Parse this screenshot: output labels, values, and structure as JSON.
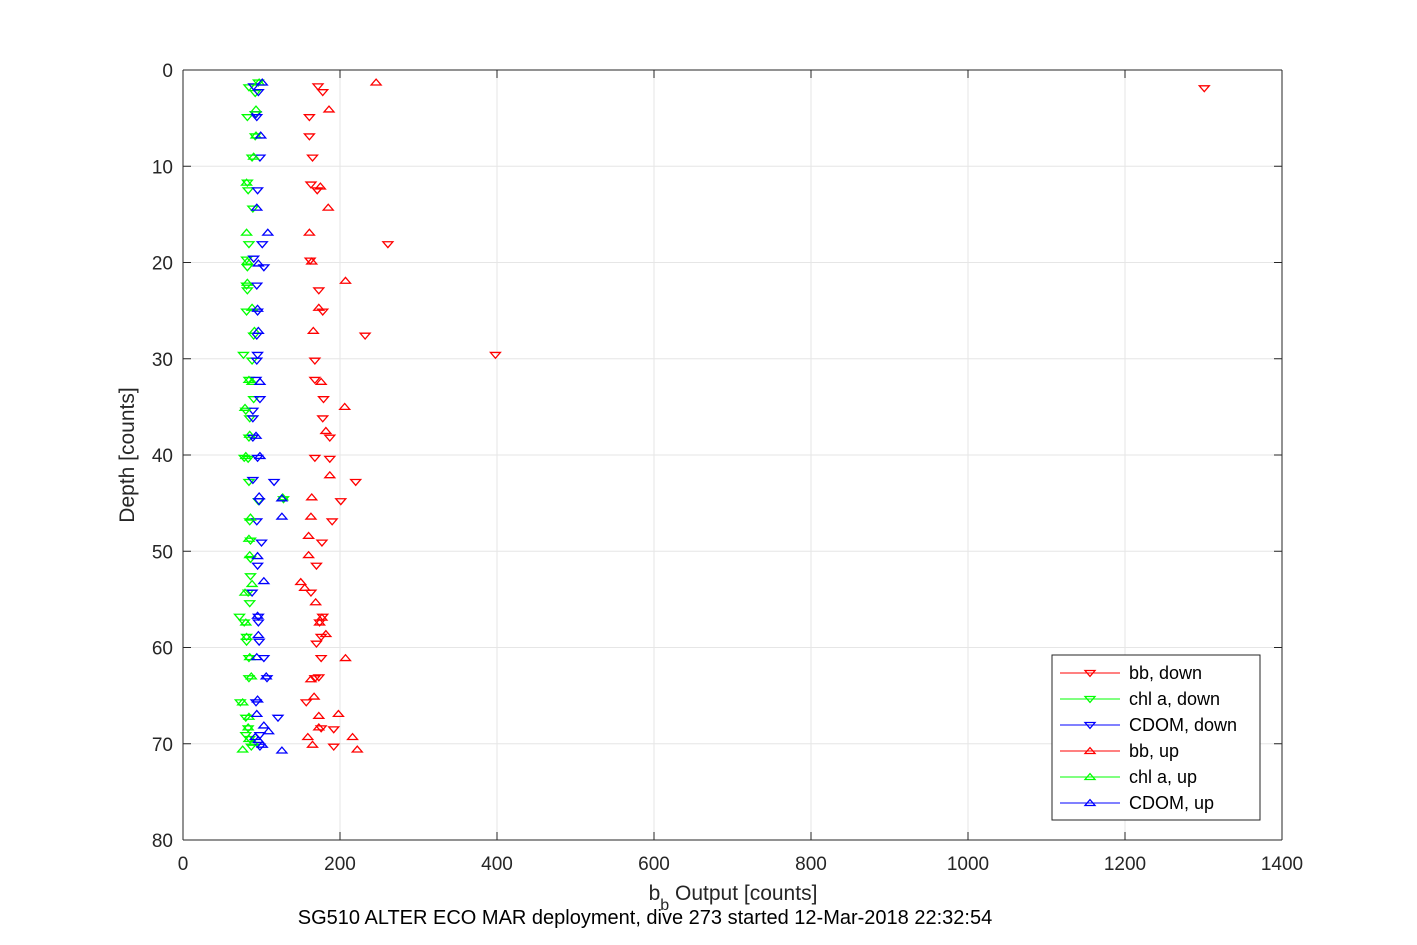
{
  "chart_data": {
    "type": "scatter",
    "xlabel_main": "b",
    "xlabel_sub": "b",
    "xlabel_rest": " Output [counts]",
    "ylabel": "Depth [counts]",
    "caption": "SG510 ALTER ECO MAR deployment, dive 273 started 12-Mar-2018 22:32:54",
    "xlim": [
      0,
      1400
    ],
    "ylim": [
      0,
      80
    ],
    "y_reversed": true,
    "grid": true,
    "legend_position": "bottom-right",
    "x_ticks": [
      "0",
      "200",
      "400",
      "600",
      "800",
      "1000",
      "1200",
      "1400"
    ],
    "y_ticks": [
      "0",
      "10",
      "20",
      "30",
      "40",
      "50",
      "60",
      "70",
      "80"
    ],
    "series": [
      {
        "name": "bb, down",
        "color": "#ff0000",
        "marker": "triangle-down",
        "points": [
          [
            172,
            1.7
          ],
          [
            178,
            2.3
          ],
          [
            1301,
            1.9
          ],
          [
            161,
            4.9
          ],
          [
            161,
            6.9
          ],
          [
            165,
            9.1
          ],
          [
            163,
            11.9
          ],
          [
            171,
            12.5
          ],
          [
            261,
            18.1
          ],
          [
            162,
            19.8
          ],
          [
            173,
            22.9
          ],
          [
            178,
            25.1
          ],
          [
            232,
            27.6
          ],
          [
            398,
            29.6
          ],
          [
            168,
            30.2
          ],
          [
            168,
            32.2
          ],
          [
            179,
            34.2
          ],
          [
            178,
            36.2
          ],
          [
            187,
            38.2
          ],
          [
            168,
            40.3
          ],
          [
            187,
            40.4
          ],
          [
            220,
            42.8
          ],
          [
            201,
            44.8
          ],
          [
            190,
            46.9
          ],
          [
            177,
            49.1
          ],
          [
            170,
            51.5
          ],
          [
            163,
            54.3
          ],
          [
            178,
            56.8
          ],
          [
            174,
            57.4
          ],
          [
            176,
            58.9
          ],
          [
            170,
            59.6
          ],
          [
            176,
            61.1
          ],
          [
            168,
            63.2
          ],
          [
            173,
            63.1
          ],
          [
            157,
            65.7
          ],
          [
            176,
            68.4
          ],
          [
            192,
            68.5
          ],
          [
            192,
            70.3
          ]
        ]
      },
      {
        "name": "chl a, down",
        "color": "#00ff00",
        "marker": "triangle-down",
        "points": [
          [
            84,
            1.8
          ],
          [
            96,
            1.3
          ],
          [
            92,
            2.4
          ],
          [
            82,
            4.9
          ],
          [
            92,
            4.6
          ],
          [
            92,
            6.9
          ],
          [
            88,
            9.1
          ],
          [
            82,
            11.7
          ],
          [
            83,
            12.5
          ],
          [
            89,
            14.4
          ],
          [
            84,
            18.1
          ],
          [
            81,
            19.7
          ],
          [
            82,
            20.5
          ],
          [
            81,
            22.4
          ],
          [
            82,
            22.9
          ],
          [
            81,
            25.1
          ],
          [
            90,
            27.6
          ],
          [
            77,
            29.6
          ],
          [
            88,
            30.2
          ],
          [
            84,
            32.2
          ],
          [
            90,
            34.2
          ],
          [
            80,
            35.4
          ],
          [
            85,
            36.2
          ],
          [
            84,
            38.2
          ],
          [
            78,
            40.3
          ],
          [
            83,
            40.4
          ],
          [
            84,
            42.8
          ],
          [
            96,
            44.8
          ],
          [
            128,
            44.6
          ],
          [
            85,
            46.9
          ],
          [
            86,
            48.9
          ],
          [
            86,
            50.8
          ],
          [
            86,
            52.6
          ],
          [
            83,
            54.3
          ],
          [
            85,
            55.4
          ],
          [
            72,
            56.8
          ],
          [
            78,
            57.4
          ],
          [
            81,
            58.9
          ],
          [
            81,
            59.4
          ],
          [
            84,
            61.1
          ],
          [
            84,
            63.2
          ],
          [
            73,
            65.7
          ],
          [
            80,
            67.3
          ],
          [
            83,
            68.4
          ],
          [
            80,
            69.1
          ],
          [
            85,
            69.5
          ],
          [
            87,
            70.3
          ]
        ]
      },
      {
        "name": "CDOM, down",
        "color": "#0000ff",
        "marker": "triangle-down",
        "points": [
          [
            90,
            1.7
          ],
          [
            96,
            2.3
          ],
          [
            93,
            4.6
          ],
          [
            94,
            4.9
          ],
          [
            98,
            9.1
          ],
          [
            95,
            12.5
          ],
          [
            101,
            18.1
          ],
          [
            90,
            19.6
          ],
          [
            103,
            20.5
          ],
          [
            94,
            22.4
          ],
          [
            95,
            25.1
          ],
          [
            94,
            27.6
          ],
          [
            95,
            29.6
          ],
          [
            94,
            30.2
          ],
          [
            93,
            32.2
          ],
          [
            98,
            34.2
          ],
          [
            89,
            35.4
          ],
          [
            89,
            36.2
          ],
          [
            89,
            38.2
          ],
          [
            95,
            40.3
          ],
          [
            89,
            42.6
          ],
          [
            116,
            42.8
          ],
          [
            97,
            44.8
          ],
          [
            94,
            46.9
          ],
          [
            100,
            49.1
          ],
          [
            95,
            51.5
          ],
          [
            88,
            54.3
          ],
          [
            96,
            56.8
          ],
          [
            96,
            57.4
          ],
          [
            97,
            59.4
          ],
          [
            103,
            61.1
          ],
          [
            107,
            63.2
          ],
          [
            93,
            65.7
          ],
          [
            121,
            67.3
          ],
          [
            98,
            69.1
          ],
          [
            98,
            70.3
          ]
        ]
      },
      {
        "name": "bb, up",
        "color": "#ff0000",
        "marker": "triangle-up",
        "points": [
          [
            246,
            1.3
          ],
          [
            186,
            4.1
          ],
          [
            175,
            12.1
          ],
          [
            185,
            14.3
          ],
          [
            161,
            16.9
          ],
          [
            164,
            19.9
          ],
          [
            207,
            21.9
          ],
          [
            173,
            24.7
          ],
          [
            166,
            27.1
          ],
          [
            176,
            32.4
          ],
          [
            206,
            35.0
          ],
          [
            182,
            37.5
          ],
          [
            187,
            42.1
          ],
          [
            164,
            44.4
          ],
          [
            163,
            46.4
          ],
          [
            160,
            48.4
          ],
          [
            160,
            50.4
          ],
          [
            150,
            53.2
          ],
          [
            155,
            53.8
          ],
          [
            169,
            55.3
          ],
          [
            177,
            56.9
          ],
          [
            174,
            57.4
          ],
          [
            182,
            58.6
          ],
          [
            207,
            61.1
          ],
          [
            163,
            63.3
          ],
          [
            167,
            65.1
          ],
          [
            173,
            67.1
          ],
          [
            198,
            66.9
          ],
          [
            173,
            68.3
          ],
          [
            216,
            69.3
          ],
          [
            159,
            69.3
          ],
          [
            165,
            70.1
          ],
          [
            222,
            70.6
          ]
        ]
      },
      {
        "name": "chl a, up",
        "color": "#00ff00",
        "marker": "triangle-up",
        "points": [
          [
            97,
            1.3
          ],
          [
            93,
            4.1
          ],
          [
            93,
            6.8
          ],
          [
            90,
            9.0
          ],
          [
            81,
            11.7
          ],
          [
            81,
            16.9
          ],
          [
            82,
            19.9
          ],
          [
            82,
            22.1
          ],
          [
            88,
            24.7
          ],
          [
            91,
            27.1
          ],
          [
            84,
            32.2
          ],
          [
            88,
            32.4
          ],
          [
            79,
            35.1
          ],
          [
            85,
            37.9
          ],
          [
            80,
            40.1
          ],
          [
            127,
            44.4
          ],
          [
            86,
            46.5
          ],
          [
            84,
            48.7
          ],
          [
            85,
            50.4
          ],
          [
            88,
            53.4
          ],
          [
            79,
            54.3
          ],
          [
            80,
            57.4
          ],
          [
            81,
            58.9
          ],
          [
            85,
            61.0
          ],
          [
            87,
            63.0
          ],
          [
            76,
            65.7
          ],
          [
            84,
            67.2
          ],
          [
            83,
            68.3
          ],
          [
            84,
            69.5
          ],
          [
            76,
            70.6
          ],
          [
            90,
            69.9
          ]
        ]
      },
      {
        "name": "CDOM, up",
        "color": "#0000ff",
        "marker": "triangle-up",
        "points": [
          [
            101,
            1.3
          ],
          [
            99,
            6.8
          ],
          [
            94,
            14.3
          ],
          [
            108,
            16.9
          ],
          [
            96,
            20.1
          ],
          [
            95,
            24.8
          ],
          [
            96,
            27.1
          ],
          [
            98,
            32.4
          ],
          [
            93,
            38.0
          ],
          [
            98,
            40.1
          ],
          [
            97,
            44.3
          ],
          [
            126,
            44.5
          ],
          [
            126,
            46.4
          ],
          [
            95,
            50.5
          ],
          [
            103,
            53.1
          ],
          [
            95,
            56.7
          ],
          [
            96,
            58.7
          ],
          [
            94,
            61.0
          ],
          [
            106,
            63.0
          ],
          [
            95,
            65.4
          ],
          [
            94,
            66.9
          ],
          [
            103,
            68.1
          ],
          [
            109,
            68.7
          ],
          [
            92,
            69.3
          ],
          [
            96,
            69.6
          ],
          [
            101,
            70.1
          ],
          [
            126,
            70.7
          ]
        ]
      }
    ]
  }
}
